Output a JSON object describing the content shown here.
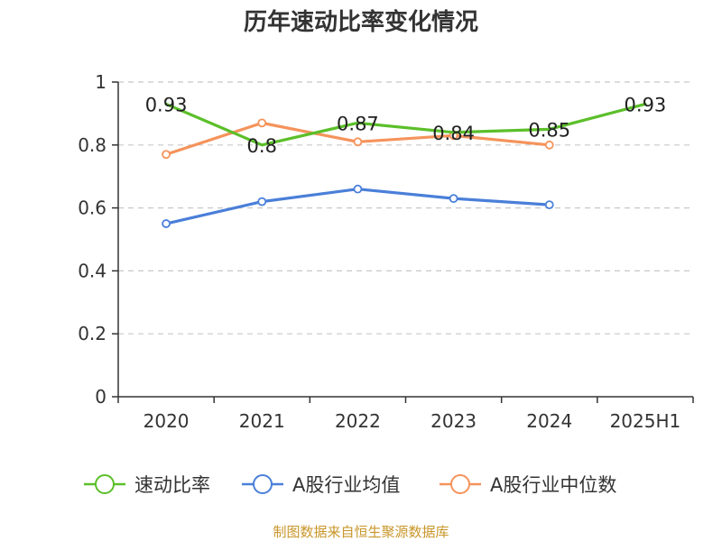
{
  "chart_data": {
    "type": "line",
    "title": "历年速动比率变化情况",
    "categories": [
      "2020",
      "2021",
      "2022",
      "2023",
      "2024",
      "2025H1"
    ],
    "ylim": [
      0,
      1
    ],
    "yticks": [
      "0",
      "0.2",
      "0.4",
      "0.6",
      "0.8",
      "1"
    ],
    "grid": true,
    "legend_position": "bottom",
    "series": [
      {
        "name": "速动比率",
        "color": "#5bbf2a",
        "values": [
          0.93,
          0.8,
          0.87,
          0.84,
          0.85,
          0.93
        ],
        "labels": [
          "0.93",
          "0.8",
          "0.87",
          "0.84",
          "0.85",
          "0.93"
        ]
      },
      {
        "name": "A股行业均值",
        "color": "#4a7fd9",
        "values": [
          0.55,
          0.62,
          0.66,
          0.63,
          0.61,
          null
        ]
      },
      {
        "name": "A股行业中位数",
        "color": "#f5935b",
        "values": [
          0.77,
          0.87,
          0.81,
          0.83,
          0.8,
          null
        ]
      }
    ],
    "source": "制图数据来自恒生聚源数据库"
  }
}
